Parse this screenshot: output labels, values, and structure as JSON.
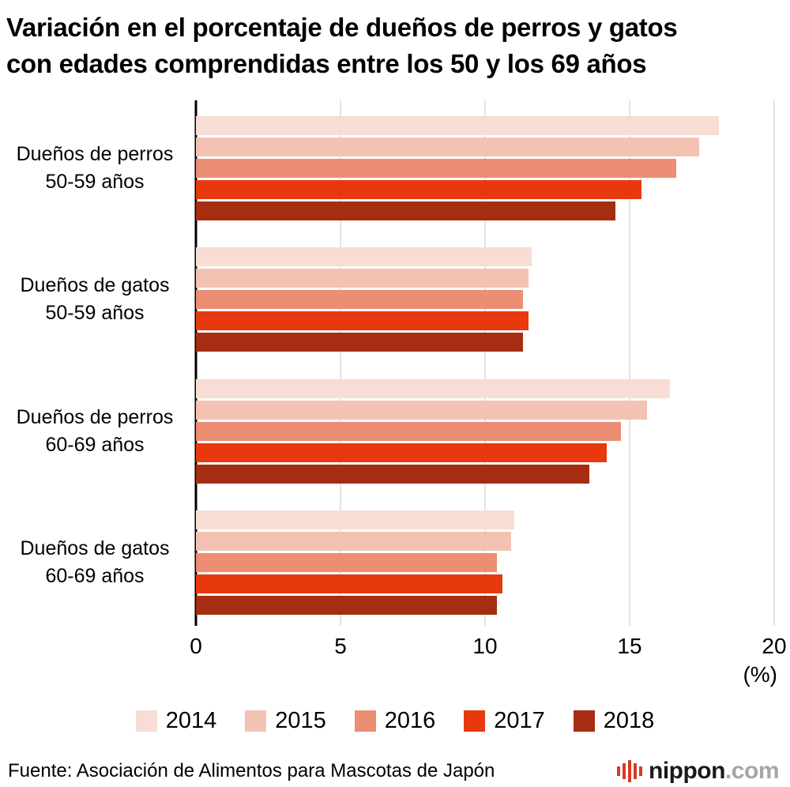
{
  "title": {
    "line1": "Variación en el porcentaje de dueños de perros y gatos",
    "line2": "con edades comprendidas entre los 50 y los 69 años"
  },
  "chart_data": {
    "type": "bar",
    "orientation": "horizontal",
    "title": "Variación en el porcentaje de dueños de perros y gatos con edades comprendidas entre los 50 y los 69 años",
    "categories": [
      {
        "line1": "Dueños de perros",
        "line2": "50-59 años"
      },
      {
        "line1": "Dueños de gatos",
        "line2": "50-59 años"
      },
      {
        "line1": "Dueños de perros",
        "line2": "60-69 años"
      },
      {
        "line1": "Dueños de gatos",
        "line2": "60-69 años"
      }
    ],
    "series": [
      {
        "name": "2014",
        "color": "#f8ddd5",
        "values": [
          18.1,
          11.6,
          16.4,
          11.0
        ]
      },
      {
        "name": "2015",
        "color": "#f3c2b3",
        "values": [
          17.4,
          11.5,
          15.6,
          10.9
        ]
      },
      {
        "name": "2016",
        "color": "#ec8e73",
        "values": [
          16.6,
          11.3,
          14.7,
          10.4
        ]
      },
      {
        "name": "2017",
        "color": "#e8390e",
        "values": [
          15.4,
          11.5,
          14.2,
          10.6
        ]
      },
      {
        "name": "2018",
        "color": "#a72d12",
        "values": [
          14.5,
          11.3,
          13.6,
          10.4
        ]
      }
    ],
    "xlim": [
      0,
      20
    ],
    "xticks": [
      0,
      5,
      10,
      15,
      20
    ],
    "unit_label": "(%)",
    "grid": "vertical",
    "legend_position": "bottom"
  },
  "footer": {
    "source": "Fuente: Asociación de Alimentos para Mascotas de Japón",
    "logo": {
      "brand": "nippon",
      "suffix": ".com"
    }
  }
}
